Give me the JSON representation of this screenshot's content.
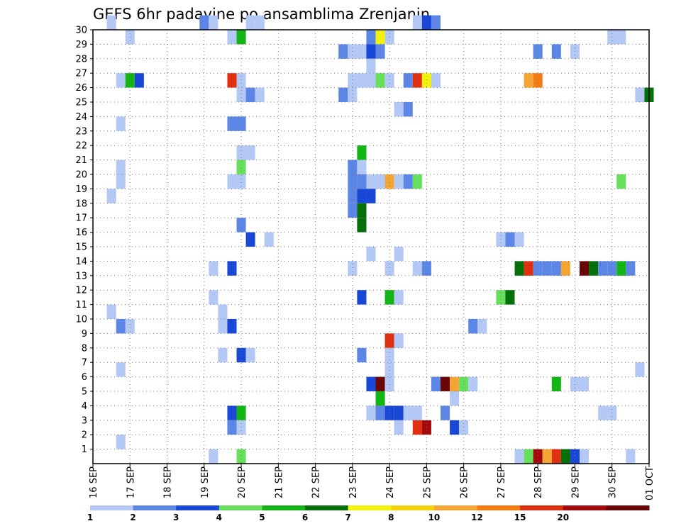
{
  "chart_data": {
    "type": "heatmap",
    "title": "GEFS 6hr padavine po ansamblima Zrenjanin",
    "y_ticks": [
      "1",
      "2",
      "3",
      "4",
      "5",
      "6",
      "7",
      "8",
      "9",
      "10",
      "11",
      "12",
      "13",
      "14",
      "15",
      "16",
      "17",
      "18",
      "19",
      "20",
      "21",
      "22",
      "23",
      "24",
      "25",
      "26",
      "27",
      "28",
      "29",
      "30"
    ],
    "x_ticks": [
      "16 SEP",
      "17 SEP",
      "18 SEP",
      "19 SEP",
      "20 SEP",
      "21 SEP",
      "22 SEP",
      "23 SEP",
      "24 SEP",
      "25 SEP",
      "26 SEP",
      "27 SEP",
      "28 SEP",
      "29 SEP",
      "30 SEP",
      "01 OCT"
    ],
    "x_range": [
      "2013-09-16T00",
      "2013-10-01T00"
    ],
    "y_range": [
      0,
      30
    ],
    "grid": true,
    "colorbar": {
      "labels": [
        "1",
        "2",
        "3",
        "4",
        "5",
        "6",
        "7",
        "8",
        "10",
        "12",
        "15",
        "20"
      ],
      "colors": [
        "#b3c8f5",
        "#5c86e6",
        "#1947d6",
        "#66e05a",
        "#12b514",
        "#05700a",
        "#f2f20c",
        "#f5d10a",
        "#f5a533",
        "#f27c12",
        "#e0300f",
        "#a3080a",
        "#6b0606"
      ]
    },
    "cells": [
      {
        "ens": 30,
        "t": "09-16T12",
        "c": 1
      },
      {
        "ens": 30,
        "t": "09-19T00",
        "c": 2
      },
      {
        "ens": 30,
        "t": "09-19T06",
        "c": 1
      },
      {
        "ens": 30,
        "t": "09-20T06",
        "c": 1
      },
      {
        "ens": 30,
        "t": "09-20T12",
        "c": 1
      },
      {
        "ens": 30,
        "t": "09-24T18",
        "c": 1
      },
      {
        "ens": 30,
        "t": "09-25T00",
        "c": 3
      },
      {
        "ens": 30,
        "t": "09-25T06",
        "c": 2
      },
      {
        "ens": 29,
        "t": "09-17T00",
        "c": 1
      },
      {
        "ens": 29,
        "t": "09-19T18",
        "c": 1
      },
      {
        "ens": 29,
        "t": "09-20T00",
        "c": 5
      },
      {
        "ens": 29,
        "t": "09-23T12",
        "c": 2
      },
      {
        "ens": 29,
        "t": "09-23T18",
        "c": 7
      },
      {
        "ens": 29,
        "t": "09-24T00",
        "c": 1
      },
      {
        "ens": 29,
        "t": "09-30T00",
        "c": 1
      },
      {
        "ens": 29,
        "t": "09-30T06",
        "c": 1
      },
      {
        "ens": 28,
        "t": "09-22T18",
        "c": 2
      },
      {
        "ens": 28,
        "t": "09-23T00",
        "c": 1
      },
      {
        "ens": 28,
        "t": "09-23T06",
        "c": 1
      },
      {
        "ens": 28,
        "t": "09-23T12",
        "c": 3
      },
      {
        "ens": 28,
        "t": "09-23T18",
        "c": 2
      },
      {
        "ens": 28,
        "t": "09-28T00",
        "c": 2
      },
      {
        "ens": 28,
        "t": "09-28T12",
        "c": 2
      },
      {
        "ens": 28,
        "t": "09-29T00",
        "c": 1
      },
      {
        "ens": 27,
        "t": "09-23T12",
        "c": 1
      },
      {
        "ens": 26,
        "t": "09-16T18",
        "c": 1
      },
      {
        "ens": 26,
        "t": "09-17T00",
        "c": 5
      },
      {
        "ens": 26,
        "t": "09-17T06",
        "c": 3
      },
      {
        "ens": 26,
        "t": "09-19T18",
        "c": 11
      },
      {
        "ens": 26,
        "t": "09-20T00",
        "c": 1
      },
      {
        "ens": 26,
        "t": "09-23T00",
        "c": 1
      },
      {
        "ens": 26,
        "t": "09-23T06",
        "c": 1
      },
      {
        "ens": 26,
        "t": "09-23T12",
        "c": 1
      },
      {
        "ens": 26,
        "t": "09-23T18",
        "c": 4
      },
      {
        "ens": 26,
        "t": "09-24T00",
        "c": 1
      },
      {
        "ens": 26,
        "t": "09-24T12",
        "c": 2
      },
      {
        "ens": 26,
        "t": "09-24T18",
        "c": 11
      },
      {
        "ens": 26,
        "t": "09-25T00",
        "c": 7
      },
      {
        "ens": 26,
        "t": "09-25T06",
        "c": 1
      },
      {
        "ens": 26,
        "t": "09-27T18",
        "c": 9
      },
      {
        "ens": 26,
        "t": "09-28T00",
        "c": 10
      },
      {
        "ens": 25,
        "t": "09-20T00",
        "c": 1
      },
      {
        "ens": 25,
        "t": "09-20T06",
        "c": 2
      },
      {
        "ens": 25,
        "t": "09-20T12",
        "c": 1
      },
      {
        "ens": 25,
        "t": "09-22T18",
        "c": 2
      },
      {
        "ens": 25,
        "t": "09-23T00",
        "c": 1
      },
      {
        "ens": 25,
        "t": "09-30T18",
        "c": 1
      },
      {
        "ens": 25,
        "t": "10-01T00",
        "c": 6
      },
      {
        "ens": 24,
        "t": "09-24T06",
        "c": 1
      },
      {
        "ens": 24,
        "t": "09-24T12",
        "c": 2
      },
      {
        "ens": 23,
        "t": "09-16T18",
        "c": 1
      },
      {
        "ens": 23,
        "t": "09-19T18",
        "c": 2
      },
      {
        "ens": 23,
        "t": "09-20T00",
        "c": 2
      },
      {
        "ens": 21,
        "t": "09-20T00",
        "c": 1
      },
      {
        "ens": 21,
        "t": "09-20T06",
        "c": 1
      },
      {
        "ens": 21,
        "t": "09-23T06",
        "c": 5
      },
      {
        "ens": 20,
        "t": "09-16T18",
        "c": 1
      },
      {
        "ens": 20,
        "t": "09-20T00",
        "c": 4
      },
      {
        "ens": 20,
        "t": "09-23T00",
        "c": 2
      },
      {
        "ens": 20,
        "t": "09-23T06",
        "c": 1
      },
      {
        "ens": 19,
        "t": "09-16T18",
        "c": 1
      },
      {
        "ens": 19,
        "t": "09-19T18",
        "c": 1
      },
      {
        "ens": 19,
        "t": "09-20T00",
        "c": 1
      },
      {
        "ens": 19,
        "t": "09-23T00",
        "c": 2
      },
      {
        "ens": 19,
        "t": "09-23T06",
        "c": 2
      },
      {
        "ens": 19,
        "t": "09-23T12",
        "c": 1
      },
      {
        "ens": 19,
        "t": "09-23T18",
        "c": 1
      },
      {
        "ens": 19,
        "t": "09-24T00",
        "c": 9
      },
      {
        "ens": 19,
        "t": "09-24T06",
        "c": 1
      },
      {
        "ens": 19,
        "t": "09-24T12",
        "c": 2
      },
      {
        "ens": 19,
        "t": "09-24T18",
        "c": 4
      },
      {
        "ens": 19,
        "t": "09-30T06",
        "c": 4
      },
      {
        "ens": 18,
        "t": "09-16T12",
        "c": 1
      },
      {
        "ens": 18,
        "t": "09-23T00",
        "c": 2
      },
      {
        "ens": 18,
        "t": "09-23T06",
        "c": 3
      },
      {
        "ens": 18,
        "t": "09-23T12",
        "c": 3
      },
      {
        "ens": 17,
        "t": "09-23T00",
        "c": 2
      },
      {
        "ens": 17,
        "t": "09-23T06",
        "c": 6
      },
      {
        "ens": 16,
        "t": "09-20T00",
        "c": 2
      },
      {
        "ens": 16,
        "t": "09-23T06",
        "c": 6
      },
      {
        "ens": 15,
        "t": "09-20T06",
        "c": 3
      },
      {
        "ens": 15,
        "t": "09-20T18",
        "c": 1
      },
      {
        "ens": 15,
        "t": "09-27T00",
        "c": 1
      },
      {
        "ens": 15,
        "t": "09-27T06",
        "c": 2
      },
      {
        "ens": 15,
        "t": "09-27T12",
        "c": 1
      },
      {
        "ens": 14,
        "t": "09-23T12",
        "c": 1
      },
      {
        "ens": 14,
        "t": "09-24T06",
        "c": 1
      },
      {
        "ens": 13,
        "t": "09-19T06",
        "c": 1
      },
      {
        "ens": 13,
        "t": "09-19T18",
        "c": 3
      },
      {
        "ens": 13,
        "t": "09-23T00",
        "c": 1
      },
      {
        "ens": 13,
        "t": "09-24T00",
        "c": 1
      },
      {
        "ens": 13,
        "t": "09-24T18",
        "c": 1
      },
      {
        "ens": 13,
        "t": "09-25T00",
        "c": 2
      },
      {
        "ens": 13,
        "t": "09-27T12",
        "c": 6
      },
      {
        "ens": 13,
        "t": "09-27T18",
        "c": 11
      },
      {
        "ens": 13,
        "t": "09-28T00",
        "c": 2
      },
      {
        "ens": 13,
        "t": "09-28T06",
        "c": 2
      },
      {
        "ens": 13,
        "t": "09-28T12",
        "c": 2
      },
      {
        "ens": 13,
        "t": "09-28T18",
        "c": 9
      },
      {
        "ens": 13,
        "t": "09-29T06",
        "c": 13
      },
      {
        "ens": 13,
        "t": "09-29T12",
        "c": 6
      },
      {
        "ens": 13,
        "t": "09-29T18",
        "c": 2
      },
      {
        "ens": 13,
        "t": "09-30T00",
        "c": 2
      },
      {
        "ens": 13,
        "t": "09-30T06",
        "c": 5
      },
      {
        "ens": 13,
        "t": "09-30T12",
        "c": 2
      },
      {
        "ens": 11,
        "t": "09-19T06",
        "c": 1
      },
      {
        "ens": 11,
        "t": "09-23T06",
        "c": 3
      },
      {
        "ens": 11,
        "t": "09-24T00",
        "c": 5
      },
      {
        "ens": 11,
        "t": "09-24T06",
        "c": 1
      },
      {
        "ens": 11,
        "t": "09-27T00",
        "c": 4
      },
      {
        "ens": 11,
        "t": "09-27T06",
        "c": 6
      },
      {
        "ens": 10,
        "t": "09-16T12",
        "c": 1
      },
      {
        "ens": 10,
        "t": "09-19T12",
        "c": 1
      },
      {
        "ens": 9,
        "t": "09-16T18",
        "c": 2
      },
      {
        "ens": 9,
        "t": "09-17T00",
        "c": 1
      },
      {
        "ens": 9,
        "t": "09-19T12",
        "c": 1
      },
      {
        "ens": 9,
        "t": "09-19T18",
        "c": 3
      },
      {
        "ens": 9,
        "t": "09-26T06",
        "c": 2
      },
      {
        "ens": 9,
        "t": "09-26T12",
        "c": 1
      },
      {
        "ens": 8,
        "t": "09-24T00",
        "c": 11
      },
      {
        "ens": 8,
        "t": "09-24T06",
        "c": 1
      },
      {
        "ens": 7,
        "t": "09-19T12",
        "c": 1
      },
      {
        "ens": 7,
        "t": "09-20T00",
        "c": 3
      },
      {
        "ens": 7,
        "t": "09-20T06",
        "c": 1
      },
      {
        "ens": 7,
        "t": "09-23T06",
        "c": 2
      },
      {
        "ens": 7,
        "t": "09-24T00",
        "c": 1
      },
      {
        "ens": 6,
        "t": "09-16T18",
        "c": 1
      },
      {
        "ens": 6,
        "t": "09-24T00",
        "c": 1
      },
      {
        "ens": 6,
        "t": "09-30T18",
        "c": 1
      },
      {
        "ens": 5,
        "t": "09-23T12",
        "c": 3
      },
      {
        "ens": 5,
        "t": "09-23T18",
        "c": 13
      },
      {
        "ens": 5,
        "t": "09-24T00",
        "c": 1
      },
      {
        "ens": 5,
        "t": "09-25T06",
        "c": 2
      },
      {
        "ens": 5,
        "t": "09-25T12",
        "c": 13
      },
      {
        "ens": 5,
        "t": "09-25T18",
        "c": 9
      },
      {
        "ens": 5,
        "t": "09-26T00",
        "c": 4
      },
      {
        "ens": 5,
        "t": "09-26T06",
        "c": 1
      },
      {
        "ens": 5,
        "t": "09-28T12",
        "c": 5
      },
      {
        "ens": 5,
        "t": "09-29T00",
        "c": 1
      },
      {
        "ens": 5,
        "t": "09-29T06",
        "c": 1
      },
      {
        "ens": 4,
        "t": "09-23T18",
        "c": 5
      },
      {
        "ens": 4,
        "t": "09-25T18",
        "c": 1
      },
      {
        "ens": 3,
        "t": "09-19T18",
        "c": 3
      },
      {
        "ens": 3,
        "t": "09-20T00",
        "c": 5
      },
      {
        "ens": 3,
        "t": "09-23T12",
        "c": 1
      },
      {
        "ens": 3,
        "t": "09-23T18",
        "c": 2
      },
      {
        "ens": 3,
        "t": "09-24T00",
        "c": 3
      },
      {
        "ens": 3,
        "t": "09-24T06",
        "c": 3
      },
      {
        "ens": 3,
        "t": "09-24T12",
        "c": 1
      },
      {
        "ens": 3,
        "t": "09-24T18",
        "c": 1
      },
      {
        "ens": 3,
        "t": "09-25T12",
        "c": 2
      },
      {
        "ens": 3,
        "t": "09-29T18",
        "c": 1
      },
      {
        "ens": 3,
        "t": "09-30T00",
        "c": 1
      },
      {
        "ens": 2,
        "t": "09-19T18",
        "c": 2
      },
      {
        "ens": 2,
        "t": "09-20T00",
        "c": 1
      },
      {
        "ens": 2,
        "t": "09-24T06",
        "c": 1
      },
      {
        "ens": 2,
        "t": "09-24T18",
        "c": 11
      },
      {
        "ens": 2,
        "t": "09-25T00",
        "c": 12
      },
      {
        "ens": 2,
        "t": "09-25T18",
        "c": 3
      },
      {
        "ens": 2,
        "t": "09-26T00",
        "c": 1
      },
      {
        "ens": 1,
        "t": "09-16T18",
        "c": 1
      },
      {
        "ens": 0,
        "t": "09-19T06",
        "c": 1
      },
      {
        "ens": 0,
        "t": "09-20T00",
        "c": 4
      },
      {
        "ens": 0,
        "t": "09-27T12",
        "c": 1
      },
      {
        "ens": 0,
        "t": "09-27T18",
        "c": 4
      },
      {
        "ens": 0,
        "t": "09-28T00",
        "c": 12
      },
      {
        "ens": 0,
        "t": "09-28T06",
        "c": 9
      },
      {
        "ens": 0,
        "t": "09-28T12",
        "c": 11
      },
      {
        "ens": 0,
        "t": "09-28T18",
        "c": 6
      },
      {
        "ens": 0,
        "t": "09-29T00",
        "c": 3
      },
      {
        "ens": 0,
        "t": "09-29T06",
        "c": 1
      },
      {
        "ens": 0,
        "t": "09-30T12",
        "c": 1
      }
    ]
  }
}
